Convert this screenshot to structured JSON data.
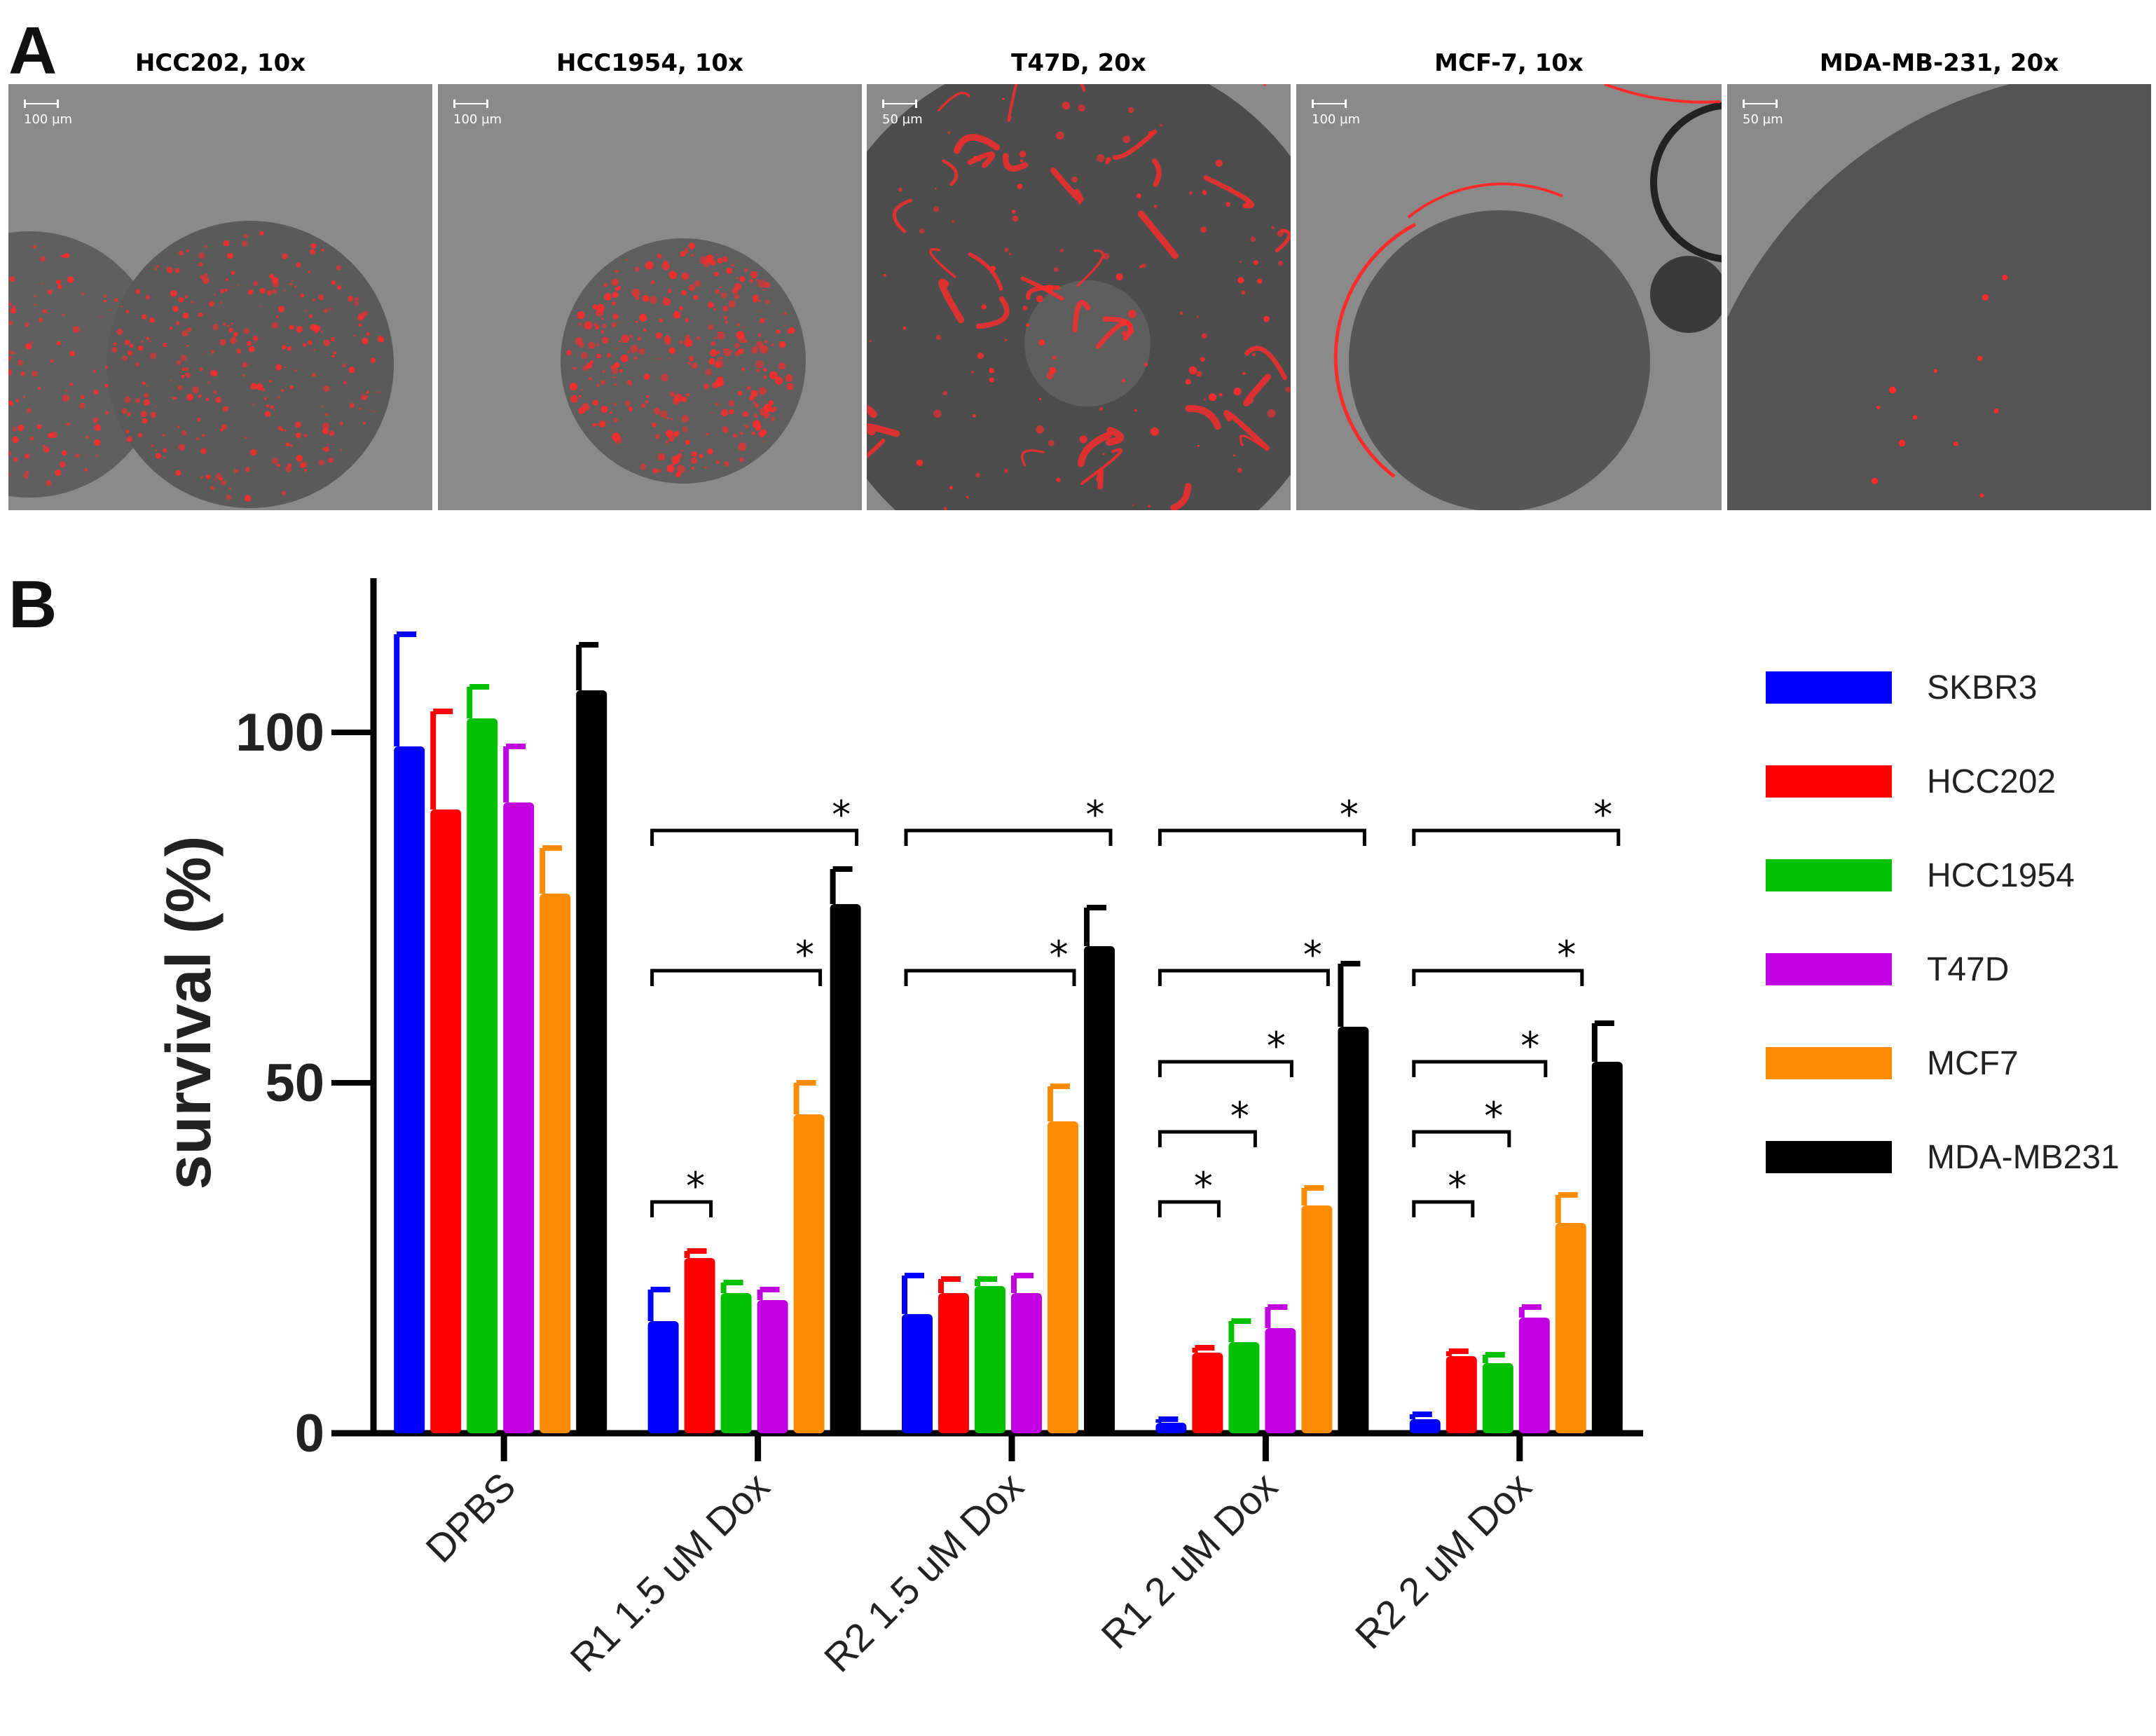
{
  "panel_labels": {
    "a": "A",
    "b": "B"
  },
  "micrographs": [
    {
      "title": "HCC202, 10x",
      "scale": "100 µm",
      "pattern": "two-spheroids-dense"
    },
    {
      "title": "HCC1954, 10x",
      "scale": "100 µm",
      "pattern": "spheroid-dense"
    },
    {
      "title": "T47D, 20x",
      "scale": "50 µm",
      "pattern": "large-network"
    },
    {
      "title": "MCF-7, 10x",
      "scale": "100 µm",
      "pattern": "rim"
    },
    {
      "title": "MDA-MB-231, 20x",
      "scale": "50 µm",
      "pattern": "sparse"
    }
  ],
  "colors": {
    "SKBR3": "#0000ff",
    "HCC202": "#ff0000",
    "HCC1954": "#00c000",
    "T47D": "#c000e0",
    "MCF7": "#ff8c00",
    "MDA-MB231": "#000000",
    "fluor": "#ff2a2a",
    "background": "#8a8a8a"
  },
  "chart_data": {
    "type": "bar",
    "title": "",
    "xlabel": "",
    "ylabel": "survival (%)",
    "ylim": [
      0,
      120
    ],
    "yticks": [
      0,
      50,
      100
    ],
    "categories": [
      "DPBS",
      "R1 1.5 uM Dox",
      "R2 1.5 uM Dox",
      "R1 2 uM Dox",
      "R2 2 uM Dox"
    ],
    "series": [
      {
        "name": "SKBR3",
        "values": [
          98,
          16,
          17,
          1.5,
          2
        ],
        "errors": [
          16,
          4.5,
          5.5,
          0.5,
          0.7
        ]
      },
      {
        "name": "HCC202",
        "values": [
          89,
          25,
          20,
          11.5,
          11
        ],
        "errors": [
          14,
          1,
          2,
          0.7,
          0.7
        ]
      },
      {
        "name": "HCC1954",
        "values": [
          102,
          20,
          21,
          13,
          10
        ],
        "errors": [
          4.5,
          1.5,
          1,
          3,
          1.2
        ]
      },
      {
        "name": "T47D",
        "values": [
          90,
          19,
          20,
          15,
          16.5
        ],
        "errors": [
          8,
          1.5,
          2.5,
          3,
          1.5
        ]
      },
      {
        "name": "MCF7",
        "values": [
          77,
          45.5,
          44.5,
          32.5,
          30
        ],
        "errors": [
          6.5,
          4.5,
          5,
          2.5,
          4
        ]
      },
      {
        "name": "MDA-MB231",
        "values": [
          106,
          75.5,
          69.5,
          58,
          53
        ],
        "errors": [
          6.5,
          5,
          5.5,
          9,
          5.5
        ]
      }
    ],
    "significance": [
      {
        "group": 1,
        "pairs": [
          [
            0,
            1
          ],
          [
            0,
            4
          ],
          [
            0,
            5
          ]
        ]
      },
      {
        "group": 2,
        "pairs": [
          [
            0,
            4
          ],
          [
            0,
            5
          ]
        ]
      },
      {
        "group": 3,
        "pairs": [
          [
            0,
            1
          ],
          [
            0,
            2
          ],
          [
            0,
            3
          ],
          [
            0,
            4
          ],
          [
            0,
            5
          ]
        ]
      },
      {
        "group": 4,
        "pairs": [
          [
            0,
            1
          ],
          [
            0,
            2
          ],
          [
            0,
            3
          ],
          [
            0,
            4
          ],
          [
            0,
            5
          ]
        ]
      }
    ],
    "significance_mark": "*",
    "legend_position": "right"
  }
}
